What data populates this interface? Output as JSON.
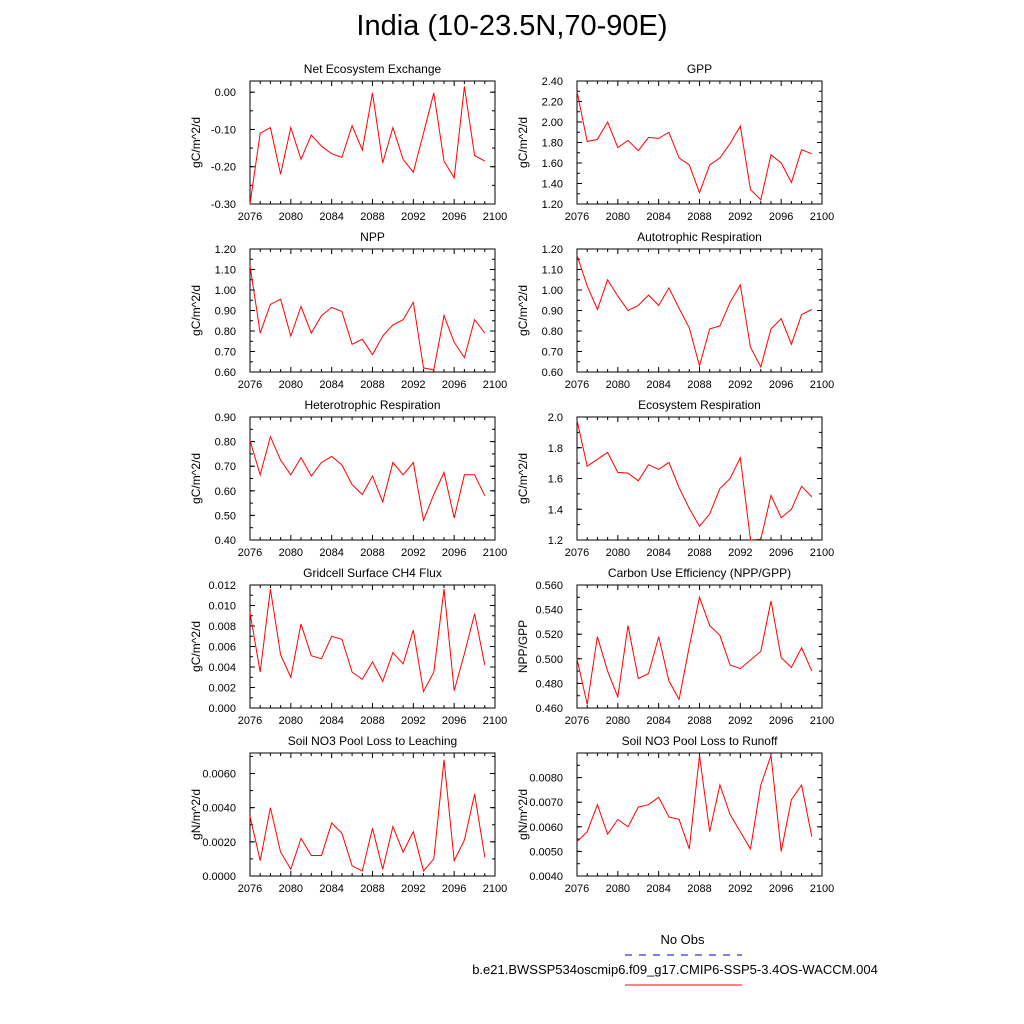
{
  "title": "India (10-23.5N,70-90E)",
  "legend": {
    "obs_label": "No Obs",
    "obs_color": "#0000cc",
    "case_label": "b.e21.BWSSP534oscmip6.f09_g17.CMIP6-SSP5-3.4OS-WACCM.004",
    "case_color": "#ff0000"
  },
  "chart_data": [
    {
      "type": "line",
      "title": "Net Ecosystem Exchange",
      "ylabel": "gC/m^2/d",
      "xlim": [
        2076,
        2100
      ],
      "xticks": [
        "2076",
        "2080",
        "2084",
        "2088",
        "2092",
        "2096",
        "2100"
      ],
      "ylim": [
        -0.3,
        0.03
      ],
      "yticks": [
        "-0.30",
        "-0.20",
        "-0.10",
        "0.00"
      ],
      "x": [
        2076,
        2077,
        2078,
        2079,
        2080,
        2081,
        2082,
        2083,
        2084,
        2085,
        2086,
        2087,
        2088,
        2089,
        2090,
        2091,
        2092,
        2093,
        2094,
        2095,
        2096,
        2097,
        2098,
        2099
      ],
      "series": [
        {
          "color": "#ff0000",
          "values": [
            -0.3,
            -0.11,
            -0.095,
            -0.22,
            -0.095,
            -0.18,
            -0.115,
            -0.145,
            -0.165,
            -0.175,
            -0.09,
            -0.155,
            -0.002,
            -0.19,
            -0.095,
            -0.18,
            -0.215,
            -0.11,
            -0.002,
            -0.185,
            -0.23,
            0.015,
            -0.17,
            -0.185
          ]
        }
      ]
    },
    {
      "type": "line",
      "title": "GPP",
      "ylabel": "gC/m^2/d",
      "xlim": [
        2076,
        2100
      ],
      "xticks": [
        "2076",
        "2080",
        "2084",
        "2088",
        "2092",
        "2096",
        "2100"
      ],
      "ylim": [
        1.2,
        2.4
      ],
      "yticks": [
        "1.20",
        "1.40",
        "1.60",
        "1.80",
        "2.00",
        "2.20",
        "2.40"
      ],
      "x": [
        2076,
        2077,
        2078,
        2079,
        2080,
        2081,
        2082,
        2083,
        2084,
        2085,
        2086,
        2087,
        2088,
        2089,
        2090,
        2091,
        2092,
        2093,
        2094,
        2095,
        2096,
        2097,
        2098,
        2099
      ],
      "series": [
        {
          "color": "#ff0000",
          "values": [
            2.3,
            1.81,
            1.83,
            2.0,
            1.75,
            1.82,
            1.72,
            1.85,
            1.84,
            1.9,
            1.65,
            1.58,
            1.31,
            1.58,
            1.65,
            1.79,
            1.96,
            1.34,
            1.24,
            1.68,
            1.6,
            1.41,
            1.73,
            1.69
          ]
        }
      ]
    },
    {
      "type": "line",
      "title": "NPP",
      "ylabel": "gC/m^2/d",
      "xlim": [
        2076,
        2100
      ],
      "xticks": [
        "2076",
        "2080",
        "2084",
        "2088",
        "2092",
        "2096",
        "2100"
      ],
      "ylim": [
        0.6,
        1.2
      ],
      "yticks": [
        "0.60",
        "0.70",
        "0.80",
        "0.90",
        "1.00",
        "1.10",
        "1.20"
      ],
      "x": [
        2076,
        2077,
        2078,
        2079,
        2080,
        2081,
        2082,
        2083,
        2084,
        2085,
        2086,
        2087,
        2088,
        2089,
        2090,
        2091,
        2092,
        2093,
        2094,
        2095,
        2096,
        2097,
        2098,
        2099
      ],
      "series": [
        {
          "color": "#ff0000",
          "values": [
            1.12,
            0.79,
            0.93,
            0.955,
            0.775,
            0.92,
            0.79,
            0.875,
            0.915,
            0.895,
            0.735,
            0.76,
            0.685,
            0.775,
            0.83,
            0.855,
            0.94,
            0.62,
            0.61,
            0.875,
            0.745,
            0.67,
            0.855,
            0.79
          ]
        }
      ]
    },
    {
      "type": "line",
      "title": "Autotrophic Respiration",
      "ylabel": "gC/m^2/d",
      "xlim": [
        2076,
        2100
      ],
      "xticks": [
        "2076",
        "2080",
        "2084",
        "2088",
        "2092",
        "2096",
        "2100"
      ],
      "ylim": [
        0.6,
        1.2
      ],
      "yticks": [
        "0.60",
        "0.70",
        "0.80",
        "0.90",
        "1.00",
        "1.10",
        "1.20"
      ],
      "x": [
        2076,
        2077,
        2078,
        2079,
        2080,
        2081,
        2082,
        2083,
        2084,
        2085,
        2086,
        2087,
        2088,
        2089,
        2090,
        2091,
        2092,
        2093,
        2094,
        2095,
        2096,
        2097,
        2098,
        2099
      ],
      "series": [
        {
          "color": "#ff0000",
          "values": [
            1.17,
            1.02,
            0.905,
            1.05,
            0.97,
            0.9,
            0.925,
            0.975,
            0.925,
            1.01,
            0.91,
            0.815,
            0.63,
            0.81,
            0.825,
            0.94,
            1.025,
            0.72,
            0.625,
            0.81,
            0.86,
            0.735,
            0.88,
            0.905
          ]
        }
      ]
    },
    {
      "type": "line",
      "title": "Heterotrophic Respiration",
      "ylabel": "gC/m^2/d",
      "xlim": [
        2076,
        2100
      ],
      "xticks": [
        "2076",
        "2080",
        "2084",
        "2088",
        "2092",
        "2096",
        "2100"
      ],
      "ylim": [
        0.4,
        0.9
      ],
      "yticks": [
        "0.40",
        "0.50",
        "0.60",
        "0.70",
        "0.80",
        "0.90"
      ],
      "x": [
        2076,
        2077,
        2078,
        2079,
        2080,
        2081,
        2082,
        2083,
        2084,
        2085,
        2086,
        2087,
        2088,
        2089,
        2090,
        2091,
        2092,
        2093,
        2094,
        2095,
        2096,
        2097,
        2098,
        2099
      ],
      "series": [
        {
          "color": "#ff0000",
          "values": [
            0.805,
            0.665,
            0.82,
            0.725,
            0.665,
            0.735,
            0.66,
            0.715,
            0.74,
            0.705,
            0.625,
            0.585,
            0.66,
            0.555,
            0.715,
            0.665,
            0.715,
            0.48,
            0.585,
            0.675,
            0.49,
            0.665,
            0.665,
            0.58
          ]
        }
      ]
    },
    {
      "type": "line",
      "title": "Ecosystem Respiration",
      "ylabel": "gC/m^2/d",
      "xlim": [
        2076,
        2100
      ],
      "xticks": [
        "2076",
        "2080",
        "2084",
        "2088",
        "2092",
        "2096",
        "2100"
      ],
      "ylim": [
        1.2,
        2.0
      ],
      "yticks": [
        "1.2",
        "1.4",
        "1.6",
        "1.8",
        "2.0"
      ],
      "x": [
        2076,
        2077,
        2078,
        2079,
        2080,
        2081,
        2082,
        2083,
        2084,
        2085,
        2086,
        2087,
        2088,
        2089,
        2090,
        2091,
        2092,
        2093,
        2094,
        2095,
        2096,
        2097,
        2098,
        2099
      ],
      "series": [
        {
          "color": "#ff0000",
          "values": [
            1.98,
            1.68,
            1.725,
            1.77,
            1.64,
            1.635,
            1.585,
            1.69,
            1.66,
            1.705,
            1.54,
            1.405,
            1.29,
            1.37,
            1.535,
            1.6,
            1.735,
            1.195,
            1.205,
            1.49,
            1.345,
            1.4,
            1.55,
            1.48
          ]
        }
      ]
    },
    {
      "type": "line",
      "title": "Gridcell Surface CH4 Flux",
      "ylabel": "gC/m^2/d",
      "xlim": [
        2076,
        2100
      ],
      "xticks": [
        "2076",
        "2080",
        "2084",
        "2088",
        "2092",
        "2096",
        "2100"
      ],
      "ylim": [
        0.0,
        0.012
      ],
      "yticks": [
        "0.000",
        "0.002",
        "0.004",
        "0.006",
        "0.008",
        "0.010",
        "0.012"
      ],
      "x": [
        2076,
        2077,
        2078,
        2079,
        2080,
        2081,
        2082,
        2083,
        2084,
        2085,
        2086,
        2087,
        2088,
        2089,
        2090,
        2091,
        2092,
        2093,
        2094,
        2095,
        2096,
        2097,
        2098,
        2099
      ],
      "series": [
        {
          "color": "#ff0000",
          "values": [
            0.0093,
            0.0035,
            0.0116,
            0.0052,
            0.003,
            0.0082,
            0.0051,
            0.0048,
            0.007,
            0.0067,
            0.0035,
            0.0028,
            0.0045,
            0.0026,
            0.0054,
            0.0043,
            0.0076,
            0.0016,
            0.0035,
            0.0116,
            0.0017,
            0.0053,
            0.0092,
            0.0042
          ]
        }
      ]
    },
    {
      "type": "line",
      "title": "Carbon Use Efficiency (NPP/GPP)",
      "ylabel": "NPP/GPP",
      "xlim": [
        2076,
        2100
      ],
      "xticks": [
        "2076",
        "2080",
        "2084",
        "2088",
        "2092",
        "2096",
        "2100"
      ],
      "ylim": [
        0.46,
        0.56
      ],
      "yticks": [
        "0.460",
        "0.480",
        "0.500",
        "0.520",
        "0.540",
        "0.560"
      ],
      "x": [
        2076,
        2077,
        2078,
        2079,
        2080,
        2081,
        2082,
        2083,
        2084,
        2085,
        2086,
        2087,
        2088,
        2089,
        2090,
        2091,
        2092,
        2093,
        2094,
        2095,
        2096,
        2097,
        2098,
        2099
      ],
      "series": [
        {
          "color": "#ff0000",
          "values": [
            0.5,
            0.463,
            0.518,
            0.49,
            0.469,
            0.527,
            0.484,
            0.488,
            0.518,
            0.482,
            0.467,
            0.51,
            0.55,
            0.527,
            0.519,
            0.495,
            0.492,
            0.499,
            0.506,
            0.547,
            0.501,
            0.493,
            0.509,
            0.49
          ]
        }
      ]
    },
    {
      "type": "line",
      "title": "Soil NO3 Pool Loss to Leaching",
      "ylabel": "gN/m^2/d",
      "xlim": [
        2076,
        2100
      ],
      "xticks": [
        "2076",
        "2080",
        "2084",
        "2088",
        "2092",
        "2096",
        "2100"
      ],
      "ylim": [
        0.0,
        0.0072
      ],
      "yticks": [
        "0.0000",
        "0.0020",
        "0.0040",
        "0.0060"
      ],
      "x": [
        2076,
        2077,
        2078,
        2079,
        2080,
        2081,
        2082,
        2083,
        2084,
        2085,
        2086,
        2087,
        2088,
        2089,
        2090,
        2091,
        2092,
        2093,
        2094,
        2095,
        2096,
        2097,
        2098,
        2099
      ],
      "series": [
        {
          "color": "#ff0000",
          "values": [
            0.0035,
            0.0009,
            0.004,
            0.0014,
            0.0004,
            0.0022,
            0.0012,
            0.0012,
            0.0031,
            0.0025,
            0.0006,
            0.0003,
            0.0028,
            0.0004,
            0.0029,
            0.0014,
            0.0026,
            0.0003,
            0.001,
            0.0068,
            0.0009,
            0.0021,
            0.0048,
            0.0011
          ]
        }
      ]
    },
    {
      "type": "line",
      "title": "Soil NO3 Pool Loss to Runoff",
      "ylabel": "gN/m^2/d",
      "xlim": [
        2076,
        2100
      ],
      "xticks": [
        "2076",
        "2080",
        "2084",
        "2088",
        "2092",
        "2096",
        "2100"
      ],
      "ylim": [
        0.004,
        0.009
      ],
      "yticks": [
        "0.0040",
        "0.0050",
        "0.0060",
        "0.0070",
        "0.0080"
      ],
      "x": [
        2076,
        2077,
        2078,
        2079,
        2080,
        2081,
        2082,
        2083,
        2084,
        2085,
        2086,
        2087,
        2088,
        2089,
        2090,
        2091,
        2092,
        2093,
        2094,
        2095,
        2096,
        2097,
        2098,
        2099
      ],
      "series": [
        {
          "color": "#ff0000",
          "values": [
            0.0054,
            0.0058,
            0.0069,
            0.0057,
            0.0063,
            0.006,
            0.0068,
            0.0069,
            0.0072,
            0.0064,
            0.0063,
            0.0051,
            0.0089,
            0.0058,
            0.0077,
            0.0065,
            0.0058,
            0.0051,
            0.0077,
            0.0089,
            0.005,
            0.0071,
            0.0077,
            0.0056
          ]
        }
      ]
    }
  ]
}
